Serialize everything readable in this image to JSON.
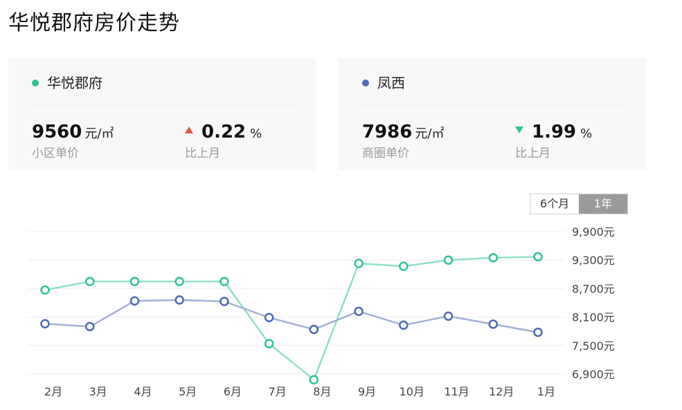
{
  "page": {
    "title": "华悦郡府房价走势"
  },
  "cards": [
    {
      "name": "华悦郡府",
      "dot_color": "#2ec48f",
      "price": "9560",
      "price_unit": "元/㎡",
      "price_label": "小区单价",
      "change_direction": "up",
      "change": "0.22",
      "change_unit": "%",
      "change_label": "比上月"
    },
    {
      "name": "凤西",
      "dot_color": "#4f67b5",
      "price": "7986",
      "price_unit": "元/㎡",
      "price_label": "商圈单价",
      "change_direction": "down",
      "change": "1.99",
      "change_unit": "%",
      "change_label": "比上月"
    }
  ],
  "range_tabs": [
    {
      "label": "6个月",
      "active": false
    },
    {
      "label": "1年",
      "active": true
    }
  ],
  "chart_data": {
    "type": "line",
    "categories": [
      "2月",
      "3月",
      "4月",
      "5月",
      "6月",
      "7月",
      "8月",
      "9月",
      "10月",
      "11月",
      "12月",
      "1月"
    ],
    "y_ticks": [
      "9,900元",
      "9,300元",
      "8,700元",
      "8,100元",
      "7,500元",
      "6,900元"
    ],
    "y_tick_values": [
      9900,
      9300,
      8700,
      8100,
      7500,
      6900
    ],
    "ylim": [
      6900,
      9900
    ],
    "grid": true,
    "series": [
      {
        "name": "华悦郡府",
        "color": "#2ec48f",
        "line_color": "#8fe0c3",
        "values": [
          8670,
          8850,
          8850,
          8850,
          8850,
          7540,
          6780,
          9230,
          9170,
          9300,
          9350,
          9370
        ]
      },
      {
        "name": "凤西",
        "color": "#4f67b5",
        "line_color": "#a3b1d6",
        "values": [
          7960,
          7900,
          8440,
          8460,
          8430,
          8090,
          7840,
          8220,
          7930,
          8120,
          7950,
          7780
        ]
      }
    ]
  }
}
